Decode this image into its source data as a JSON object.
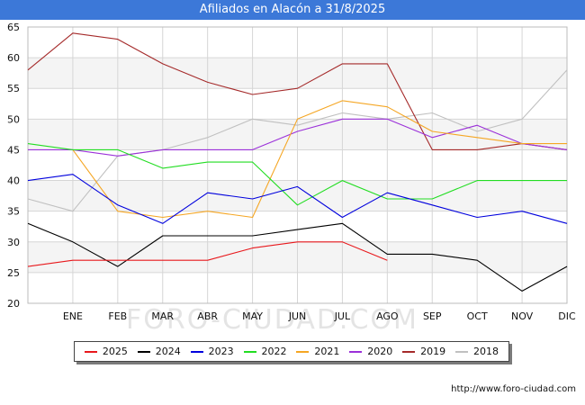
{
  "header": {
    "title": "Afiliados en Alacón a 31/8/2025"
  },
  "footer": {
    "url": "http://www.foro-ciudad.com"
  },
  "watermark": "FORO-CIUDAD.COM",
  "chart_data": {
    "type": "line",
    "title": "Afiliados en Alacón a 31/8/2025",
    "xlabel": "",
    "ylabel": "",
    "categories": [
      "",
      "ENE",
      "FEB",
      "MAR",
      "ABR",
      "MAY",
      "JUN",
      "JUL",
      "AGO",
      "SEP",
      "OCT",
      "NOV",
      "DIC"
    ],
    "ylim": [
      20,
      65
    ],
    "yticks": [
      20,
      25,
      30,
      35,
      40,
      45,
      50,
      55,
      60,
      65
    ],
    "grid": true,
    "legend_position": "bottom",
    "series": [
      {
        "name": "2025",
        "color": "#e8181c",
        "values": [
          26,
          27,
          27,
          27,
          27,
          29,
          30,
          30,
          27,
          null,
          null,
          null,
          null
        ]
      },
      {
        "name": "2024",
        "color": "#000000",
        "values": [
          33,
          30,
          26,
          31,
          31,
          31,
          32,
          33,
          28,
          28,
          27,
          22,
          26
        ]
      },
      {
        "name": "2023",
        "color": "#0000dd",
        "values": [
          40,
          41,
          36,
          33,
          38,
          37,
          39,
          34,
          38,
          36,
          34,
          35,
          33
        ]
      },
      {
        "name": "2022",
        "color": "#22dd22",
        "values": [
          46,
          45,
          45,
          42,
          43,
          43,
          36,
          40,
          37,
          37,
          40,
          40,
          40
        ]
      },
      {
        "name": "2021",
        "color": "#f5a623",
        "values": [
          null,
          45,
          35,
          34,
          35,
          34,
          50,
          53,
          52,
          48,
          47,
          46,
          46
        ]
      },
      {
        "name": "2020",
        "color": "#9b30d9",
        "values": [
          45,
          45,
          44,
          45,
          45,
          45,
          48,
          50,
          50,
          47,
          49,
          46,
          45
        ]
      },
      {
        "name": "2019",
        "color": "#a52a2a",
        "values": [
          58,
          64,
          63,
          59,
          56,
          54,
          55,
          59,
          59,
          45,
          45,
          46,
          45
        ]
      },
      {
        "name": "2018",
        "color": "#c0c0c0",
        "values": [
          37,
          35,
          44,
          45,
          47,
          50,
          49,
          51,
          50,
          51,
          48,
          50,
          58
        ]
      }
    ]
  }
}
